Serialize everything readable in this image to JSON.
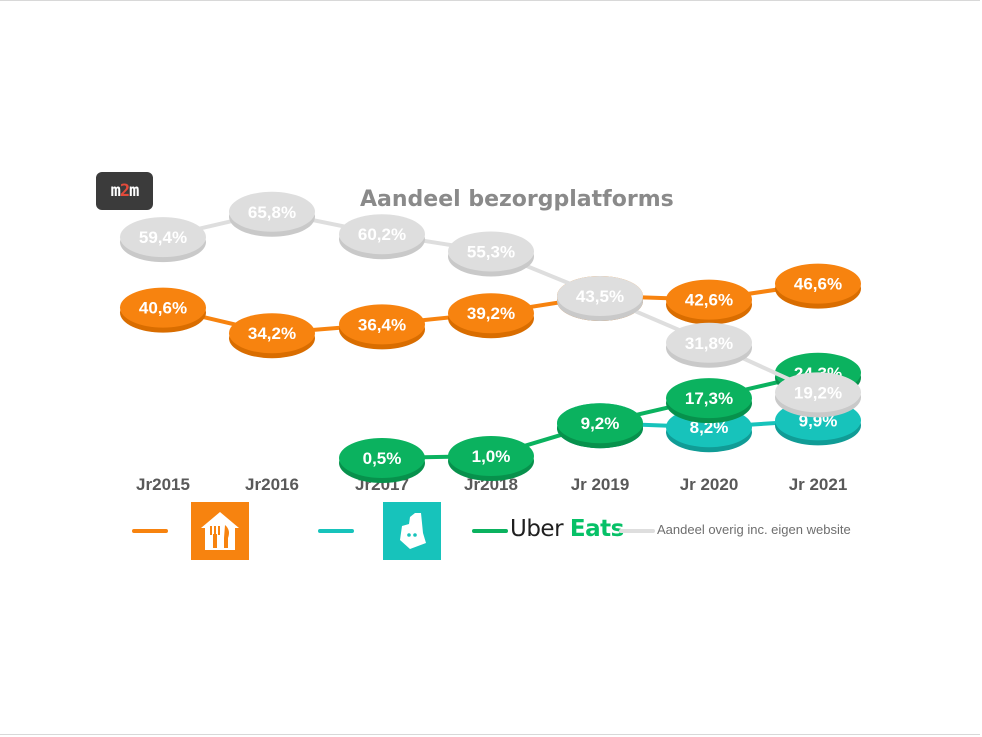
{
  "brand": {
    "logo_text_1": "m",
    "logo_text_2": "2",
    "logo_text_3": "m"
  },
  "chart_data": {
    "type": "line",
    "title": "Aandeel bezorgplatforms",
    "categories": [
      "Jr2015",
      "Jr2016",
      "Jr2017",
      "Jr2018",
      "Jr 2019",
      "Jr 2020",
      "Jr 2021"
    ],
    "series": [
      {
        "key": "thuisbezorgd",
        "color": "#f7830f",
        "values": [
          40.6,
          34.2,
          36.4,
          39.2,
          43.5,
          42.6,
          46.6
        ],
        "labels": [
          "40,6%",
          "34,2%",
          "36,4%",
          "39,2%",
          "43,5%",
          "42,6%",
          "46,6%"
        ]
      },
      {
        "key": "overig",
        "name": "Aandeel overig inc. eigen website",
        "color": "#dedede",
        "values": [
          59.4,
          65.8,
          60.2,
          55.3,
          43.5,
          31.8,
          19.2
        ],
        "labels": [
          "59,4%",
          "65,8%",
          "60,2%",
          "55,3%",
          "43,5%",
          "31,8%",
          "19,2%"
        ]
      },
      {
        "key": "deliveroo",
        "color": "#17c3bb",
        "values": [
          null,
          null,
          null,
          null,
          9.2,
          8.2,
          9.9
        ],
        "labels": [
          "",
          "",
          "",
          "",
          "",
          "8,2%",
          "9,9%"
        ]
      },
      {
        "key": "ubereats",
        "name": "Uber Eats",
        "color": "#0bb25f",
        "values": [
          null,
          null,
          0.5,
          1.0,
          9.2,
          17.3,
          24.3
        ],
        "labels": [
          "",
          "",
          "0,5%",
          "1,0%",
          "9,2%",
          "17,3%",
          "24,3%"
        ]
      }
    ],
    "legend_placement": "bottom"
  },
  "legend": {
    "overig_label": "Aandeel overig inc. eigen website",
    "ubereats_text_1": "Uber",
    "ubereats_text_2": "Eats",
    "thuisbezorgd_icon": "thuisbezorgd-logo-icon",
    "deliveroo_icon": "deliveroo-logo-icon"
  }
}
